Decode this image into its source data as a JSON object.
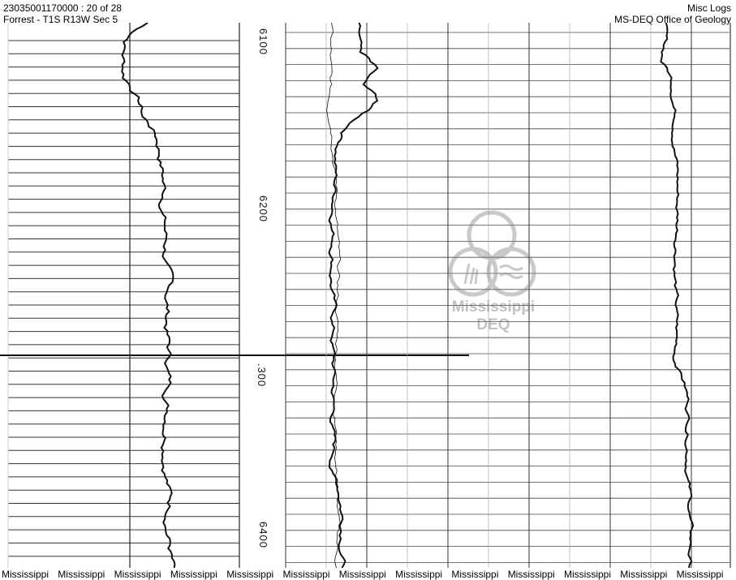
{
  "header": {
    "document_id": "23035001170000 : 20 of 28",
    "location": "Forrest - T1S R13W Sec 5",
    "category": "Misc Logs",
    "agency": "MS-DEQ Office of Geology"
  },
  "depth_labels": [
    "6100",
    "6200",
    ".300",
    "6400"
  ],
  "watermark": {
    "line1": "Mississippi",
    "line2": "DEQ"
  },
  "footer_labels": [
    "Mississippi",
    "Mississippi",
    "Mississippi",
    "Mississippi",
    "Mississippi",
    "Mississippi",
    "Mississippi",
    "Mississippi",
    "Mississippi",
    "Mississippi",
    "Mississippi",
    "Mississippi",
    "Mississippi"
  ]
}
